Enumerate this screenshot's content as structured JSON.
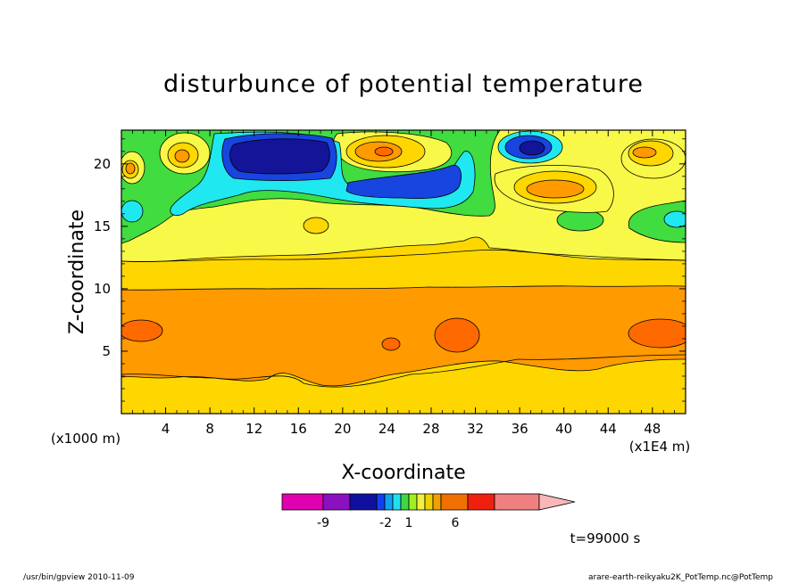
{
  "chart_data": {
    "type": "heatmap",
    "title": "disturbunce of potential temperature",
    "xlabel": "X-coordinate",
    "ylabel": "Z-coordinate",
    "x_unit": "(x1E4 m)",
    "y_unit": "(x1000 m)",
    "xlim": [
      0,
      51
    ],
    "ylim": [
      0,
      22.7
    ],
    "x_ticks": [
      "4",
      "8",
      "12",
      "16",
      "20",
      "24",
      "28",
      "32",
      "36",
      "40",
      "44",
      "48"
    ],
    "y_ticks": [
      "5",
      "10",
      "15",
      "20"
    ],
    "time_label": "t=99000 s",
    "colorbar": {
      "labels": [
        "-9",
        "-2",
        "1",
        "6"
      ],
      "colors": [
        "#e000b0",
        "#8a10c0",
        "#1010a0",
        "#1040f0",
        "#10a0f0",
        "#20e0f0",
        "#40d840",
        "#a0f020",
        "#f0f040",
        "#f0d000",
        "#f0a000",
        "#f07000",
        "#f02010",
        "#f08080",
        "#f8b8b8"
      ]
    },
    "layers": [
      {
        "color": "#ffd700",
        "level": 1
      },
      {
        "color": "#ff9a00",
        "level": 2
      },
      {
        "color": "#ff6a00",
        "level": 3
      },
      {
        "color": "#f8f848",
        "level": 0
      },
      {
        "color": "#40dc40",
        "level": -1
      },
      {
        "color": "#20e8f0",
        "level": -2
      },
      {
        "color": "#1844e0",
        "level": -3
      },
      {
        "color": "#141498",
        "level": -4
      }
    ]
  },
  "footer": {
    "left": "/usr/bin/gpview  2010-11-09",
    "right": "arare-earth-reikyaku2K_PotTemp.nc@PotTemp"
  }
}
